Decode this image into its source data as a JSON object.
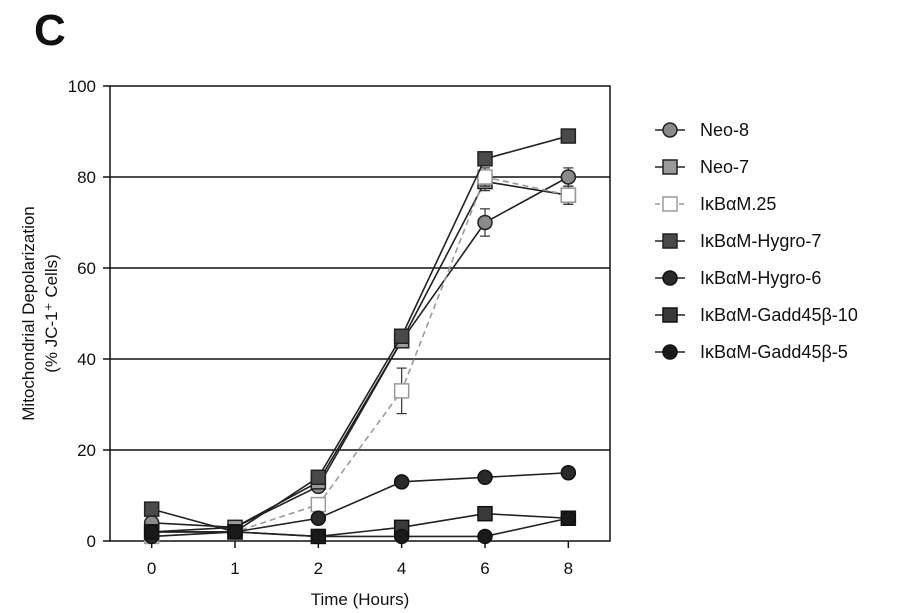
{
  "panel_label": "C",
  "chart_data": {
    "type": "line",
    "title": "",
    "xlabel": "Time (Hours)",
    "ylabel_line1": "Mitochondrial Depolarization",
    "ylabel_line2": "(% JC-1⁺ Cells)",
    "categories": [
      "0",
      "1",
      "2",
      "4",
      "6",
      "8"
    ],
    "ylim": [
      0,
      100
    ],
    "yticks": [
      0,
      20,
      40,
      60,
      80,
      100
    ],
    "grid": "horizontal",
    "legend_position": "right",
    "series": [
      {
        "name": "Neo-8",
        "marker": "circle",
        "fill": "#8a8a8a",
        "stroke": "#222222",
        "dashed": false,
        "values": [
          4,
          3,
          12,
          44,
          70,
          80
        ],
        "errors": [
          0,
          0,
          1,
          1,
          3,
          2
        ]
      },
      {
        "name": "Neo-7",
        "marker": "square",
        "fill": "#9a9a9a",
        "stroke": "#222222",
        "dashed": false,
        "values": [
          2,
          3,
          13,
          44,
          79,
          76
        ],
        "errors": [
          0,
          0,
          1,
          1,
          2,
          2
        ]
      },
      {
        "name": "IκBαM.25",
        "marker": "square",
        "fill": "#ffffff",
        "stroke": "#9a9a9a",
        "dashed": true,
        "values": [
          1,
          2,
          8,
          33,
          80,
          76
        ],
        "errors": [
          0,
          0,
          1,
          5,
          2,
          2
        ]
      },
      {
        "name": "IκBαM-Hygro-7",
        "marker": "square",
        "fill": "#4a4a4a",
        "stroke": "#222222",
        "dashed": false,
        "values": [
          7,
          2,
          14,
          45,
          84,
          89
        ],
        "errors": [
          0,
          0,
          1,
          1,
          1,
          1
        ]
      },
      {
        "name": "IκBαM-Hygro-6",
        "marker": "circle",
        "fill": "#2a2a2a",
        "stroke": "#111111",
        "dashed": false,
        "values": [
          1,
          2,
          5,
          13,
          14,
          15
        ],
        "errors": [
          0,
          0,
          0,
          0,
          0,
          0
        ]
      },
      {
        "name": "IκBαM-Gadd45β-10",
        "marker": "square",
        "fill": "#3a3a3a",
        "stroke": "#111111",
        "dashed": false,
        "values": [
          2,
          2,
          1,
          3,
          6,
          5
        ],
        "errors": [
          0,
          0,
          0,
          0,
          0,
          0
        ]
      },
      {
        "name": "IκBαM-Gadd45β-5",
        "marker": "circle",
        "fill": "#1a1a1a",
        "stroke": "#111111",
        "dashed": false,
        "values": [
          2,
          2,
          1,
          1,
          1,
          5
        ],
        "errors": [
          0,
          0,
          0,
          0,
          0,
          0
        ]
      }
    ]
  }
}
